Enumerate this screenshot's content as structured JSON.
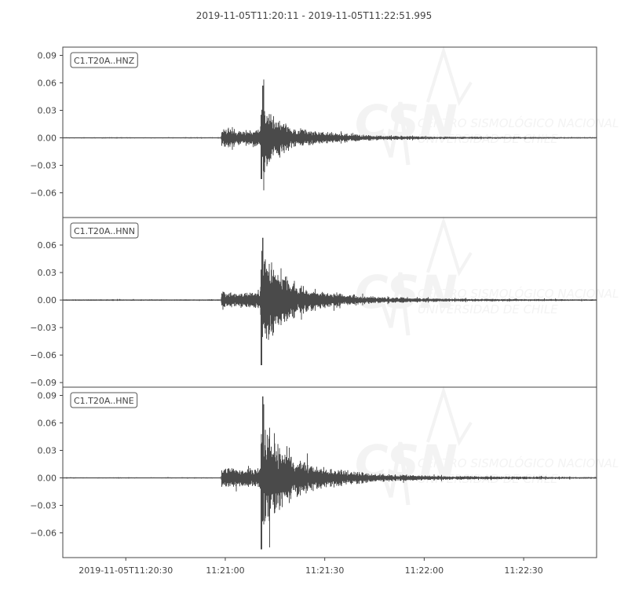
{
  "chart_data": {
    "type": "line",
    "title": "2019-11-05T11:20:11  -  2019-11-05T11:22:51.995",
    "x_range": [
      "2019-11-05T11:20:11",
      "2019-11-05T11:22:51.995"
    ],
    "x_ticks": [
      "2019-11-05T11:20:30",
      "11:21:00",
      "11:21:30",
      "11:22:00",
      "11:22:30"
    ],
    "x_tick_times": [
      "11:20:30",
      "11:21:00",
      "11:21:30",
      "11:22:00",
      "11:22:30"
    ],
    "grid": false,
    "trace_color": "#4a4a4a",
    "watermark": {
      "logo": "CSN",
      "line1": "CENTRO SISMOLÓGICO NACIONAL",
      "line2": "UNIVERSIDAD DE CHILE"
    },
    "series": [
      {
        "name": "C1.T20A..HNZ",
        "ylim": [
          -0.087,
          0.099
        ],
        "y_ticks": [
          "0.09",
          "0.06",
          "0.03",
          "0.00",
          "−0.03",
          "−0.06"
        ],
        "y_tick_values": [
          0.09,
          0.06,
          0.03,
          0,
          -0.03,
          -0.06
        ],
        "peak_max": 0.057,
        "peak_min": -0.045,
        "envelope": [
          [
            "11:20:11",
            0.0006
          ],
          [
            "11:20:58.7",
            0.0006
          ],
          [
            "11:20:59",
            0.013
          ],
          [
            "11:21:05",
            0.009
          ],
          [
            "11:21:10.5",
            0.012
          ],
          [
            "11:21:11",
            0.05
          ],
          [
            "11:21:14",
            0.03
          ],
          [
            "11:21:20",
            0.012
          ],
          [
            "11:21:30",
            0.007
          ],
          [
            "11:21:45",
            0.003
          ],
          [
            "11:22:05",
            0.0015
          ],
          [
            "11:22:52",
            0.0008
          ]
        ]
      },
      {
        "name": "C1.T20A..HNN",
        "ylim": [
          -0.095,
          0.09
        ],
        "y_ticks": [
          "0.06",
          "0.03",
          "0.00",
          "−0.03",
          "−0.06",
          "−0.09"
        ],
        "y_tick_values": [
          0.06,
          0.03,
          0,
          -0.03,
          -0.06,
          -0.09
        ],
        "peak_max": 0.068,
        "peak_min": -0.071,
        "envelope": [
          [
            "11:20:11",
            0.0008
          ],
          [
            "11:20:58.7",
            0.0008
          ],
          [
            "11:20:59",
            0.011
          ],
          [
            "11:21:05",
            0.008
          ],
          [
            "11:21:10.5",
            0.012
          ],
          [
            "11:21:11",
            0.065
          ],
          [
            "11:21:14",
            0.045
          ],
          [
            "11:21:20",
            0.02
          ],
          [
            "11:21:30",
            0.01
          ],
          [
            "11:21:45",
            0.004
          ],
          [
            "11:22:05",
            0.002
          ],
          [
            "11:22:52",
            0.0009
          ]
        ]
      },
      {
        "name": "C1.T20A..HNE",
        "ylim": [
          -0.087,
          0.099
        ],
        "y_ticks": [
          "0.09",
          "0.06",
          "0.03",
          "0.00",
          "−0.03",
          "−0.06"
        ],
        "y_tick_values": [
          0.09,
          0.06,
          0.03,
          0,
          -0.03,
          -0.06
        ],
        "peak_max": 0.089,
        "peak_min": -0.078,
        "envelope": [
          [
            "11:20:11",
            0.0006
          ],
          [
            "11:20:58.7",
            0.0006
          ],
          [
            "11:20:59",
            0.013
          ],
          [
            "11:21:05",
            0.01
          ],
          [
            "11:21:10.5",
            0.012
          ],
          [
            "11:21:11",
            0.07
          ],
          [
            "11:21:14",
            0.045
          ],
          [
            "11:21:20",
            0.025
          ],
          [
            "11:21:30",
            0.012
          ],
          [
            "11:21:45",
            0.005
          ],
          [
            "11:22:05",
            0.0025
          ],
          [
            "11:22:52",
            0.001
          ]
        ]
      }
    ]
  }
}
